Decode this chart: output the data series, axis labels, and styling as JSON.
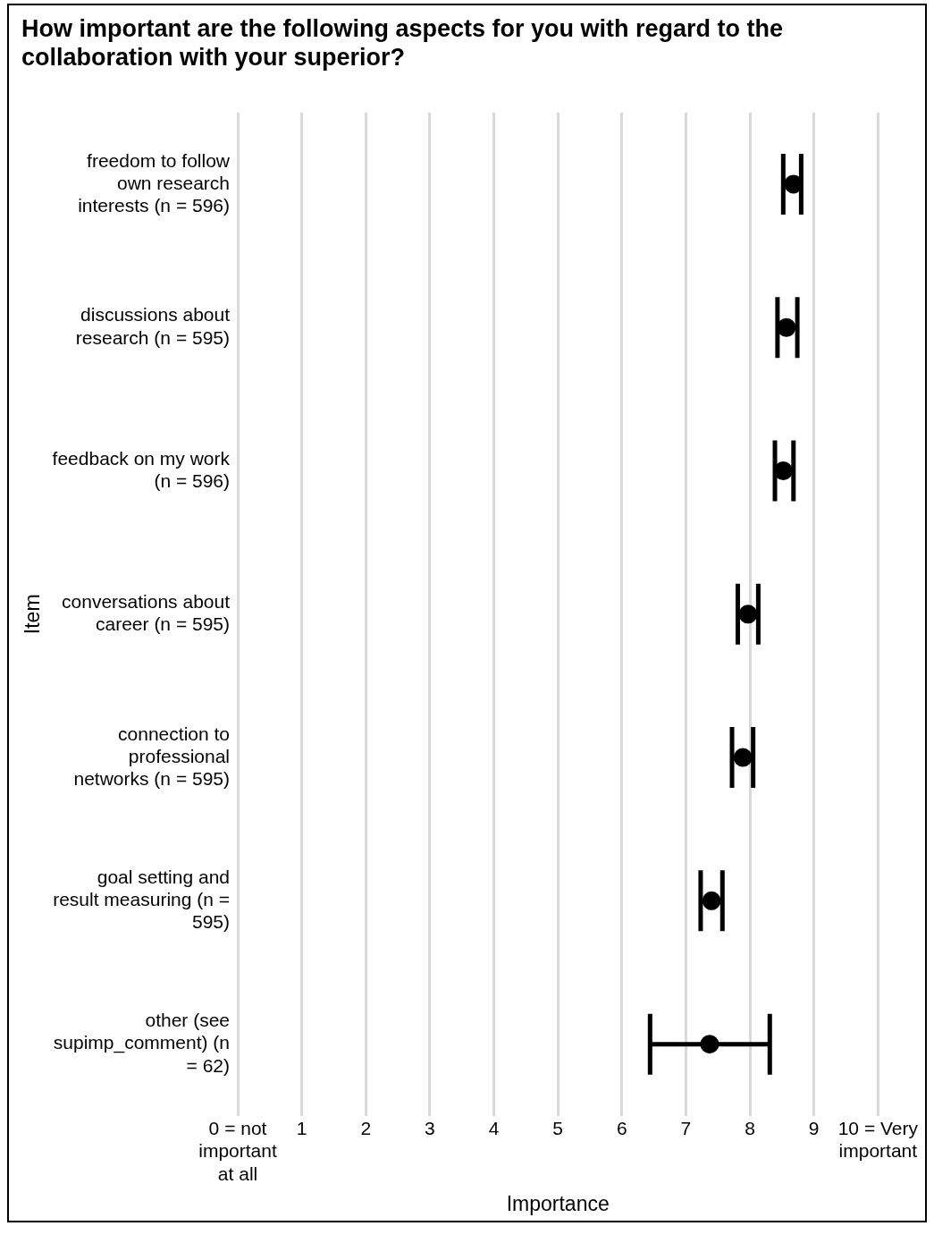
{
  "chart_data": {
    "type": "scatter",
    "orientation": "horizontal",
    "title": "How important are the following aspects for you with regard to the collaboration with your superior?",
    "xlabel": "Importance",
    "ylabel": "Item",
    "categories": [
      "freedom to follow own research interests (n = 596)",
      "discussions about research (n = 595)",
      "feedback on my work (n = 596)",
      "conversations about career (n = 595)",
      "connection to professional networks (n = 595)",
      "goal setting and result measuring (n = 595)",
      "other (see supimp_comment) (n = 62)"
    ],
    "series": [
      {
        "color": "#000000",
        "values": [
          8.68,
          8.57,
          8.52,
          7.97,
          7.89,
          7.4,
          7.37
        ],
        "errors": [
          [
            8.52,
            8.8
          ],
          [
            8.43,
            8.74
          ],
          [
            8.39,
            8.68
          ],
          [
            7.81,
            8.13
          ],
          [
            7.72,
            8.05
          ],
          [
            7.23,
            7.57
          ],
          [
            6.44,
            8.31
          ]
        ]
      }
    ],
    "xlim": [
      0,
      10
    ],
    "xticks": [
      {
        "value": 0,
        "label": "0 = not important at all"
      },
      1,
      2,
      3,
      4,
      5,
      6,
      7,
      8,
      9,
      {
        "value": 10,
        "label": "10 = Very important"
      }
    ],
    "grid": "x",
    "legend": false,
    "marker": "circle"
  }
}
